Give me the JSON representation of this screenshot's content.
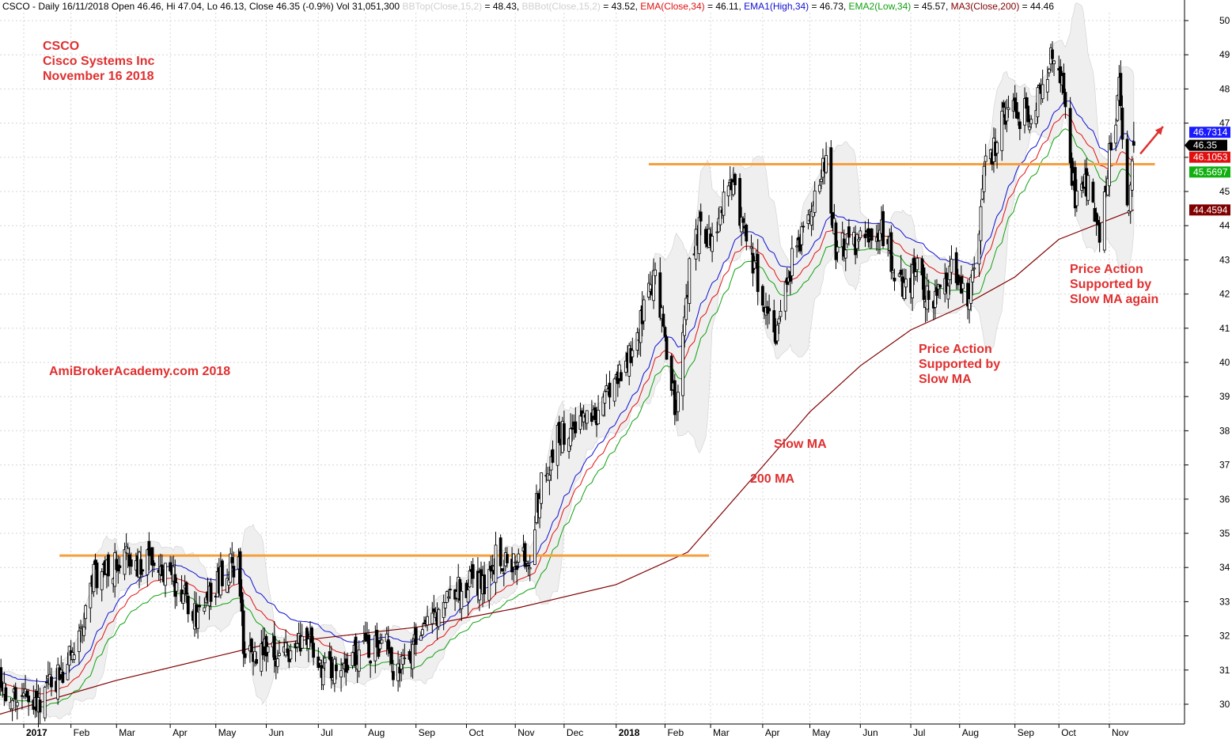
{
  "header": {
    "segments": [
      {
        "text": "CSCO - Daily 16/11/2018 Open 46.46, Hi 47.04, Lo 46.13, Close 46.35 (-0.9%) Vol 31,051,300 ",
        "color": "#000000"
      },
      {
        "text": "BBTop(Close,15,2)",
        "color": "#cfcfcf"
      },
      {
        "text": " = 48.43, ",
        "color": "#000000"
      },
      {
        "text": "BBBot(Close,15,2)",
        "color": "#cfcfcf"
      },
      {
        "text": " = 43.52, ",
        "color": "#000000"
      },
      {
        "text": "EMA(Close,34)",
        "color": "#e01010"
      },
      {
        "text": " = 46.11, ",
        "color": "#000000"
      },
      {
        "text": "EMA1(High,34)",
        "color": "#1010d0"
      },
      {
        "text": " = 46.73, ",
        "color": "#000000"
      },
      {
        "text": "EMA2(Low,34)",
        "color": "#10a010"
      },
      {
        "text": " = 45.57, ",
        "color": "#000000"
      },
      {
        "text": "MA3(Close,200)",
        "color": "#800000"
      },
      {
        "text": " = 44.46",
        "color": "#000000"
      }
    ]
  },
  "annotations": {
    "title_lines": [
      "CSCO",
      "Cisco Systems Inc",
      "November 16 2018"
    ],
    "watermark": "AmiBrokerAcademy.com  2018",
    "slow_ma": "Slow MA",
    "ma200": "200 MA",
    "price_action_1": [
      "Price Action",
      "Supported by",
      "Slow MA"
    ],
    "price_action_2": [
      "Price Action",
      "Supported by",
      "Slow MA again"
    ],
    "text_color": "#e03030"
  },
  "chart_data": {
    "type": "candlestick",
    "symbol": "CSCO",
    "ylim": [
      29.6,
      50.4
    ],
    "y_ticks": [
      30,
      31,
      32,
      33,
      34,
      35,
      36,
      37,
      38,
      39,
      40,
      41,
      42,
      43,
      44,
      45,
      46,
      47,
      48,
      49,
      50
    ],
    "x_ticks": [
      {
        "label": "2017",
        "date": "2017-01-03",
        "bold": true
      },
      {
        "label": "Feb",
        "date": "2017-02-01"
      },
      {
        "label": "Mar",
        "date": "2017-03-01"
      },
      {
        "label": "Apr",
        "date": "2017-04-03"
      },
      {
        "label": "May",
        "date": "2017-05-01"
      },
      {
        "label": "Jun",
        "date": "2017-06-01"
      },
      {
        "label": "Jul",
        "date": "2017-07-03"
      },
      {
        "label": "Aug",
        "date": "2017-08-01"
      },
      {
        "label": "Sep",
        "date": "2017-09-01"
      },
      {
        "label": "Oct",
        "date": "2017-10-02"
      },
      {
        "label": "Nov",
        "date": "2017-11-01"
      },
      {
        "label": "Dec",
        "date": "2017-12-01"
      },
      {
        "label": "2018",
        "date": "2018-01-02",
        "bold": true
      },
      {
        "label": "Feb",
        "date": "2018-02-01"
      },
      {
        "label": "Mar",
        "date": "2018-03-01"
      },
      {
        "label": "Apr",
        "date": "2018-04-02"
      },
      {
        "label": "May",
        "date": "2018-05-01"
      },
      {
        "label": "Jun",
        "date": "2018-06-01"
      },
      {
        "label": "Jul",
        "date": "2018-07-02"
      },
      {
        "label": "Aug",
        "date": "2018-08-01"
      },
      {
        "label": "Sep",
        "date": "2018-09-04"
      },
      {
        "label": "Oct",
        "date": "2018-10-01"
      },
      {
        "label": "Nov",
        "date": "2018-11-01"
      }
    ],
    "price_path": [
      {
        "date": "2016-12-15",
        "close": 30.5
      },
      {
        "date": "2017-01-13",
        "close": 30.2
      },
      {
        "date": "2017-01-25",
        "close": 30.8
      },
      {
        "date": "2017-02-08",
        "close": 31.9
      },
      {
        "date": "2017-02-15",
        "close": 33.8
      },
      {
        "date": "2017-03-06",
        "close": 34.2
      },
      {
        "date": "2017-03-28",
        "close": 34.1
      },
      {
        "date": "2017-04-11",
        "close": 33.2
      },
      {
        "date": "2017-04-20",
        "close": 32.6
      },
      {
        "date": "2017-05-02",
        "close": 33.6
      },
      {
        "date": "2017-05-15",
        "close": 34.3
      },
      {
        "date": "2017-05-18",
        "close": 31.7
      },
      {
        "date": "2017-06-13",
        "close": 31.5
      },
      {
        "date": "2017-06-27",
        "close": 32.0
      },
      {
        "date": "2017-07-06",
        "close": 30.9
      },
      {
        "date": "2017-07-21",
        "close": 31.4
      },
      {
        "date": "2017-08-14",
        "close": 31.7
      },
      {
        "date": "2017-08-18",
        "close": 30.6
      },
      {
        "date": "2017-09-08",
        "close": 32.2
      },
      {
        "date": "2017-09-22",
        "close": 33.4
      },
      {
        "date": "2017-10-13",
        "close": 33.6
      },
      {
        "date": "2017-10-20",
        "close": 34.3
      },
      {
        "date": "2017-11-10",
        "close": 34.1
      },
      {
        "date": "2017-11-14",
        "close": 35.9
      },
      {
        "date": "2017-11-27",
        "close": 37.8
      },
      {
        "date": "2017-12-20",
        "close": 38.5
      },
      {
        "date": "2018-01-12",
        "close": 40.5
      },
      {
        "date": "2018-01-26",
        "close": 42.6
      },
      {
        "date": "2018-02-05",
        "close": 39.5
      },
      {
        "date": "2018-02-08",
        "close": 38.3
      },
      {
        "date": "2018-02-16",
        "close": 42.9
      },
      {
        "date": "2018-02-23",
        "close": 44.1
      },
      {
        "date": "2018-03-02",
        "close": 43.6
      },
      {
        "date": "2018-03-12",
        "close": 45.4
      },
      {
        "date": "2018-03-22",
        "close": 43.9
      },
      {
        "date": "2018-04-05",
        "close": 41.2
      },
      {
        "date": "2018-04-10",
        "close": 40.6
      },
      {
        "date": "2018-04-20",
        "close": 42.9
      },
      {
        "date": "2018-05-01",
        "close": 44.3
      },
      {
        "date": "2018-05-10",
        "close": 46.0
      },
      {
        "date": "2018-05-17",
        "close": 43.4
      },
      {
        "date": "2018-06-05",
        "close": 43.5
      },
      {
        "date": "2018-06-14",
        "close": 44.0
      },
      {
        "date": "2018-06-26",
        "close": 42.2
      },
      {
        "date": "2018-07-06",
        "close": 42.6
      },
      {
        "date": "2018-07-16",
        "close": 41.6
      },
      {
        "date": "2018-07-27",
        "close": 42.8
      },
      {
        "date": "2018-08-06",
        "close": 41.7
      },
      {
        "date": "2018-08-13",
        "close": 43.6
      },
      {
        "date": "2018-08-16",
        "close": 45.5
      },
      {
        "date": "2018-08-29",
        "close": 47.2
      },
      {
        "date": "2018-09-14",
        "close": 47.3
      },
      {
        "date": "2018-09-26",
        "close": 48.8
      },
      {
        "date": "2018-10-01",
        "close": 48.9
      },
      {
        "date": "2018-10-05",
        "close": 47.6
      },
      {
        "date": "2018-10-11",
        "close": 44.6
      },
      {
        "date": "2018-10-19",
        "close": 45.3
      },
      {
        "date": "2018-10-26",
        "close": 43.8
      },
      {
        "date": "2018-11-02",
        "close": 46.5
      },
      {
        "date": "2018-11-07",
        "close": 47.9
      },
      {
        "date": "2018-11-12",
        "close": 44.3
      },
      {
        "date": "2018-11-16",
        "close": 46.35
      }
    ],
    "last_bar": {
      "date": "2018-11-16",
      "open": 46.46,
      "high": 47.04,
      "low": 46.13,
      "close": 46.35,
      "volume": 31051300
    },
    "series": [
      {
        "key": "BBTop",
        "name": "BBTop(Close,15,2)",
        "value": 48.43,
        "color": "#cfcfcf"
      },
      {
        "key": "BBBot",
        "name": "BBBot(Close,15,2)",
        "value": 43.52,
        "color": "#cfcfcf"
      },
      {
        "key": "EMA",
        "name": "EMA(Close,34)",
        "value": 46.11,
        "color": "#e01010"
      },
      {
        "key": "EMA1",
        "name": "EMA1(High,34)",
        "value": 46.73,
        "color": "#1010d0"
      },
      {
        "key": "EMA2",
        "name": "EMA2(Low,34)",
        "value": 45.57,
        "color": "#10a010"
      },
      {
        "key": "MA3",
        "name": "MA3(Close,200)",
        "value": 44.46,
        "color": "#800000"
      }
    ],
    "ma200_path": [
      {
        "date": "2016-12-15",
        "value": 29.65
      },
      {
        "date": "2017-03-01",
        "value": 30.7
      },
      {
        "date": "2017-06-01",
        "value": 31.75
      },
      {
        "date": "2017-09-01",
        "value": 32.25
      },
      {
        "date": "2017-11-01",
        "value": 32.8
      },
      {
        "date": "2018-01-02",
        "value": 33.5
      },
      {
        "date": "2018-02-15",
        "value": 34.45
      },
      {
        "date": "2018-04-01",
        "value": 36.9
      },
      {
        "date": "2018-05-01",
        "value": 38.55
      },
      {
        "date": "2018-06-01",
        "value": 39.9
      },
      {
        "date": "2018-07-02",
        "value": 40.95
      },
      {
        "date": "2018-08-01",
        "value": 41.6
      },
      {
        "date": "2018-09-04",
        "value": 42.5
      },
      {
        "date": "2018-10-01",
        "value": 43.6
      },
      {
        "date": "2018-11-16",
        "value": 44.46
      }
    ],
    "price_labels": [
      {
        "text": "46.7314",
        "value": 46.7314,
        "bg": "#1a1aff",
        "fg": "#ffffff"
      },
      {
        "text": "46.35",
        "value": 46.35,
        "bg": "#000000",
        "fg": "#ffffff"
      },
      {
        "text": "46.1053",
        "value": 46.1053,
        "bg": "#e01010",
        "fg": "#ffffff"
      },
      {
        "text": "45.5697",
        "value": 45.5697,
        "bg": "#10b010",
        "fg": "#ffffff"
      },
      {
        "text": "44.4594",
        "value": 44.4594,
        "bg": "#800000",
        "fg": "#ffffff"
      }
    ],
    "support_resistance": [
      {
        "from": "2017-01-25",
        "to": "2018-02-28",
        "value": 34.35,
        "color": "#f5a040"
      },
      {
        "from": "2018-01-22",
        "to": "2018-11-29",
        "value": 45.8,
        "color": "#f5a040"
      }
    ],
    "trend_arrow": {
      "from": {
        "date": "2018-11-20",
        "value": 46.1
      },
      "to": {
        "date": "2018-12-04",
        "value": 46.9
      },
      "color": "#e03030"
    }
  }
}
